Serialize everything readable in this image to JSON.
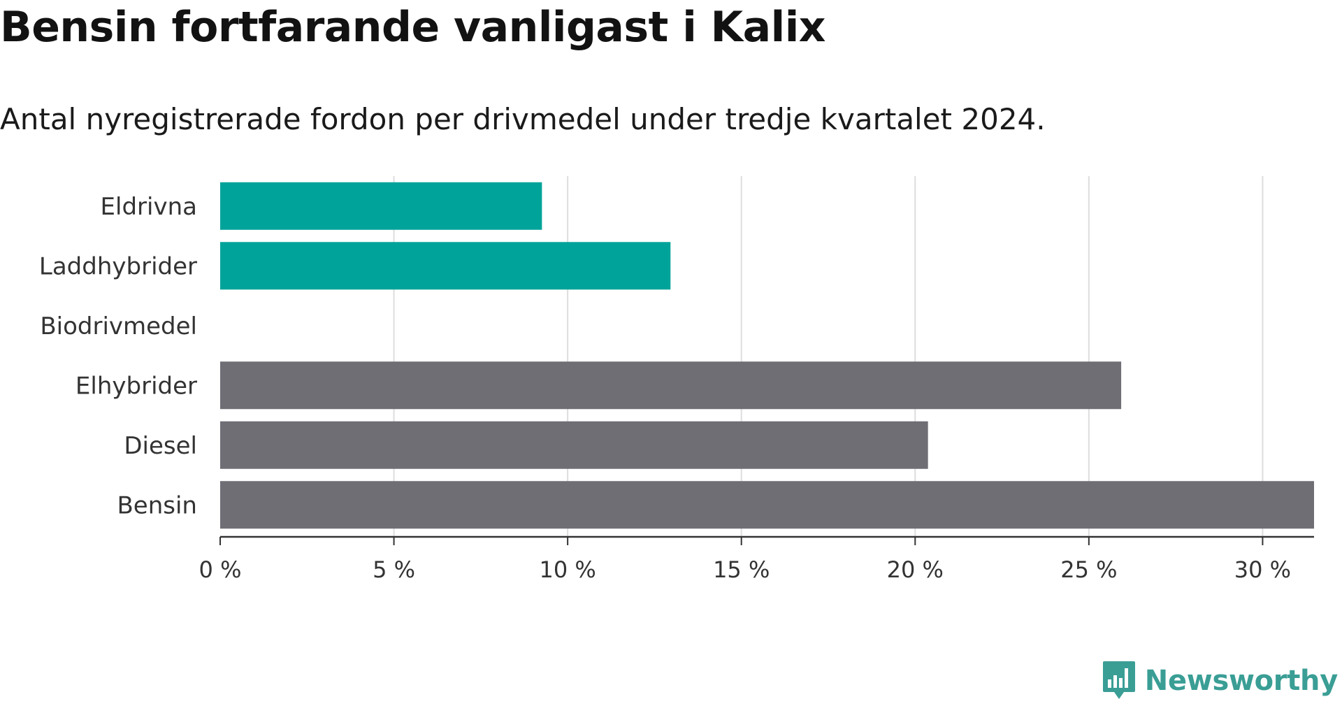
{
  "title": "Bensin fortfarande vanligast i Kalix",
  "subtitle": "Antal nyregistrerade fordon per drivmedel under tredje kvartalet 2024.",
  "chart_data": {
    "type": "bar",
    "orientation": "horizontal",
    "categories": [
      "Eldrivna",
      "Laddhybrider",
      "Biodrivmedel",
      "Elhybrider",
      "Diesel",
      "Bensin"
    ],
    "values": [
      9.26,
      12.96,
      0,
      25.93,
      20.37,
      31.48
    ],
    "unit": "%",
    "colors": [
      "#00a39a",
      "#00a39a",
      "#00a39a",
      "#6f6e75",
      "#6f6e75",
      "#6f6e75"
    ],
    "xlim": [
      0,
      31.48
    ],
    "xticks": [
      0,
      5,
      10,
      15,
      20,
      25,
      30
    ],
    "xtick_labels": [
      "0 %",
      "5 %",
      "10 %",
      "15 %",
      "20 %",
      "25 %",
      "30 %"
    ],
    "grid": true,
    "xlabel": "",
    "ylabel": ""
  },
  "logo": {
    "text": "Newsworthy",
    "icon": "newsworthy-logo-icon",
    "color": "#3a9e95"
  }
}
